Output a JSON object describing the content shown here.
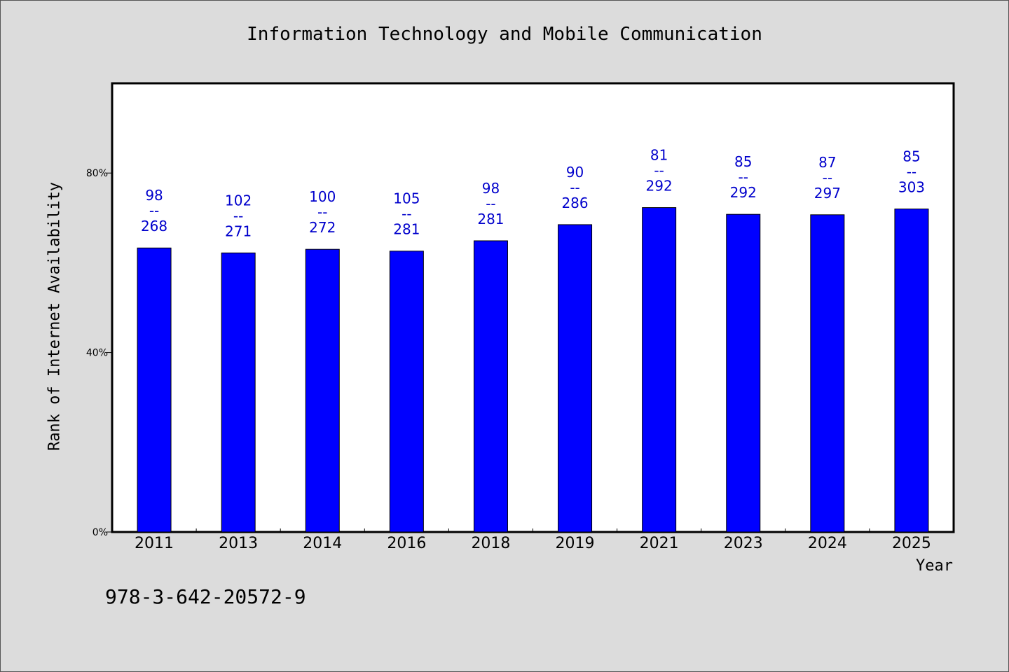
{
  "chart_data": {
    "type": "bar",
    "title": "Information Technology and Mobile Communication",
    "xlabel": "Year",
    "ylabel": "Rank of Internet Availability",
    "ylim": [
      0,
      100
    ],
    "yticks": [
      0,
      40,
      80
    ],
    "ytick_labels": [
      "0%",
      "40%",
      "80%"
    ],
    "categories": [
      "2011",
      "2013",
      "2014",
      "2016",
      "2018",
      "2019",
      "2021",
      "2023",
      "2024",
      "2025"
    ],
    "values": [
      63.3,
      62.2,
      63.0,
      62.6,
      64.9,
      68.5,
      72.3,
      70.8,
      70.7,
      72.0
    ],
    "labels_top": [
      "98",
      "102",
      "100",
      "105",
      "98",
      "90",
      "81",
      "85",
      "87",
      "85"
    ],
    "labels_sep": "--",
    "labels_bottom": [
      "268",
      "271",
      "272",
      "281",
      "281",
      "286",
      "292",
      "292",
      "297",
      "303"
    ],
    "bar_color": "#0000ff",
    "label_color": "#0000cc",
    "grid": false
  },
  "footer_text": "978-3-642-20572-9"
}
